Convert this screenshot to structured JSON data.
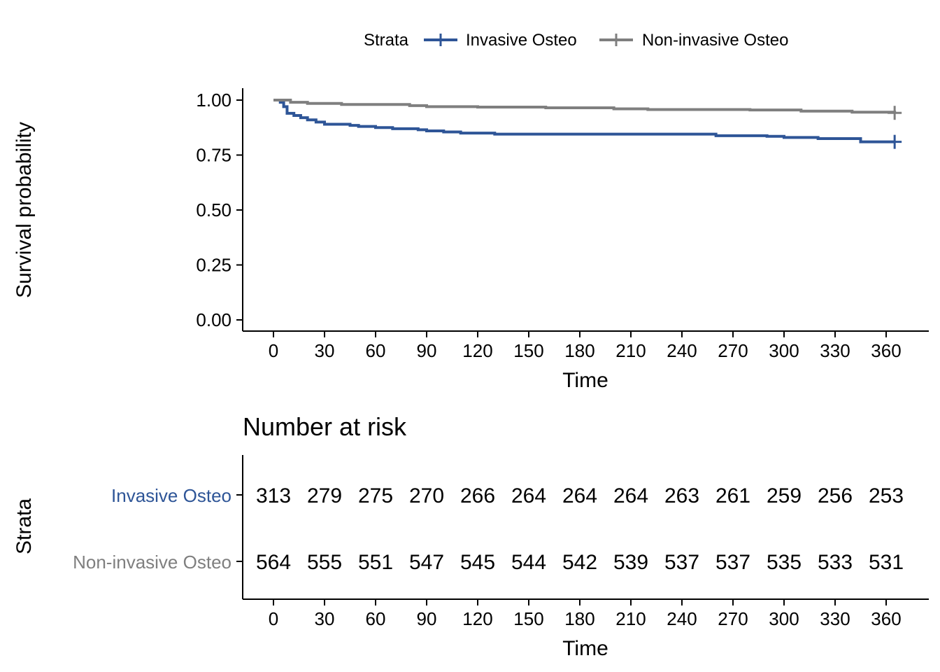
{
  "legend": {
    "title": "Strata",
    "placement": "top"
  },
  "chart_data": [
    {
      "type": "line",
      "subtype": "kaplan-meier",
      "title": "",
      "xlabel": "Time",
      "ylabel": "Survival probability",
      "xlim": [
        0,
        366
      ],
      "ylim": [
        0,
        1
      ],
      "xticks": [
        0,
        30,
        60,
        90,
        120,
        150,
        180,
        210,
        240,
        270,
        300,
        330,
        360
      ],
      "yticks": [
        0,
        0.25,
        0.5,
        0.75,
        1.0
      ],
      "ytick_labels": [
        "0.00",
        "0.25",
        "0.50",
        "0.75",
        "1.00"
      ],
      "grid": false,
      "series": [
        {
          "name": "Invasive Osteo",
          "color": "#2e5597",
          "x": [
            0,
            4,
            6,
            8,
            12,
            16,
            20,
            25,
            30,
            45,
            50,
            60,
            70,
            85,
            90,
            100,
            110,
            130,
            180,
            260,
            290,
            300,
            320,
            345,
            365
          ],
          "y": [
            1.0,
            0.99,
            0.97,
            0.94,
            0.93,
            0.92,
            0.91,
            0.9,
            0.89,
            0.885,
            0.88,
            0.875,
            0.87,
            0.865,
            0.86,
            0.855,
            0.85,
            0.845,
            0.845,
            0.838,
            0.835,
            0.83,
            0.825,
            0.81,
            0.81
          ],
          "censor": [
            {
              "x": 365,
              "y": 0.81
            }
          ]
        },
        {
          "name": "Non-invasive Osteo",
          "color": "#7f7f7f",
          "x": [
            0,
            10,
            20,
            40,
            80,
            90,
            120,
            160,
            200,
            220,
            280,
            310,
            340,
            365
          ],
          "y": [
            1.0,
            0.99,
            0.985,
            0.98,
            0.975,
            0.97,
            0.968,
            0.965,
            0.96,
            0.957,
            0.955,
            0.95,
            0.945,
            0.942
          ],
          "censor": [
            {
              "x": 365,
              "y": 0.942
            }
          ]
        }
      ]
    },
    {
      "type": "table",
      "title": "Number at risk",
      "ylabel": "Strata",
      "xlabel": "Time",
      "x": [
        0,
        30,
        60,
        90,
        120,
        150,
        180,
        210,
        240,
        270,
        300,
        330,
        360
      ],
      "rows": [
        {
          "name": "Invasive Osteo",
          "color": "#2e5597",
          "values": [
            313,
            279,
            275,
            270,
            266,
            264,
            264,
            264,
            263,
            261,
            259,
            256,
            253
          ]
        },
        {
          "name": "Non-invasive Osteo",
          "color": "#7f7f7f",
          "values": [
            564,
            555,
            551,
            547,
            545,
            544,
            542,
            539,
            537,
            537,
            535,
            533,
            531
          ]
        }
      ]
    }
  ]
}
